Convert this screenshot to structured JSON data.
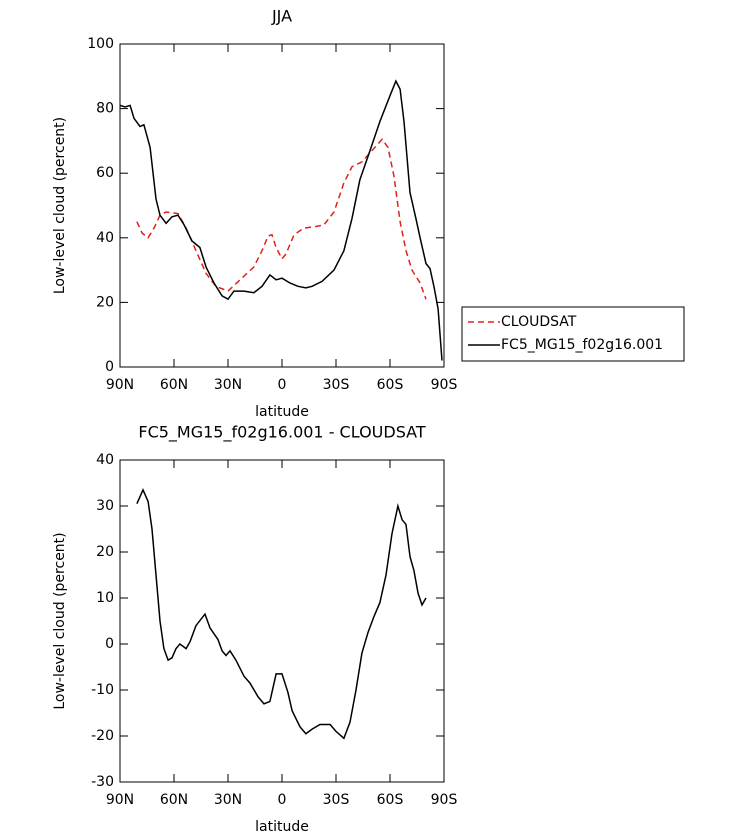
{
  "chart_data": [
    {
      "type": "line",
      "title": "JJA",
      "xlabel": "latitude",
      "ylabel": "Low-level cloud (percent)",
      "xlim": [
        90,
        -90
      ],
      "xticks": [
        {
          "value": 90,
          "label": "90N"
        },
        {
          "value": 60,
          "label": "60N"
        },
        {
          "value": 30,
          "label": "30N"
        },
        0,
        {
          "value": -30,
          "label": "30S"
        },
        {
          "value": -60,
          "label": "60S"
        },
        {
          "value": -90,
          "label": "90S"
        }
      ],
      "ylim": [
        0,
        100
      ],
      "yticks": [
        0,
        20,
        40,
        60,
        80,
        100
      ],
      "series": [
        {
          "name": "CLOUDSAT",
          "color": "#e0221b",
          "dashed": true,
          "x": [
            80.6,
            77.8,
            74.4,
            71.1,
            67.8,
            64.4,
            57.8,
            53.3,
            47.8,
            42.2,
            36.7,
            30,
            23.3,
            15.6,
            11.1,
            7.8,
            5.6,
            3.3,
            0,
            -2.2,
            -6.7,
            -12.2,
            -18.9,
            -23.3,
            -28.9,
            -34.4,
            -38.9,
            -44.4,
            -50,
            -55.6,
            -58.9,
            -62.2,
            -65.6,
            -68.9,
            -72.2,
            -76.7,
            -80
          ],
          "values": [
            45,
            41.5,
            40,
            43,
            47,
            48,
            47.5,
            43,
            36,
            29,
            25,
            23.5,
            27,
            31,
            36,
            40.5,
            41,
            37,
            33.5,
            35,
            41,
            43,
            43.5,
            44,
            48,
            57,
            62,
            63.5,
            67,
            70.5,
            68,
            59,
            45,
            36,
            30,
            26,
            21
          ]
        },
        {
          "name": "FC5_MG15_f02g16.001",
          "color": "#000000",
          "dashed": false,
          "x": [
            90,
            87.2,
            84.4,
            82.2,
            78.9,
            76.7,
            73.3,
            70,
            67.8,
            64.4,
            61.1,
            57.8,
            54.4,
            50,
            45.6,
            42.2,
            37.8,
            33.3,
            30,
            26.7,
            21.1,
            15.6,
            11.1,
            6.7,
            3.3,
            0,
            -4.4,
            -8.9,
            -13.3,
            -16.7,
            -22.2,
            -28.9,
            -34.4,
            -38.9,
            -43.3,
            -48.9,
            -54.4,
            -60,
            -63.3,
            -65.6,
            -67.8,
            -71.1,
            -74.4,
            -76.7,
            -80,
            -82.2,
            -84.4,
            -86.7,
            -88.9
          ],
          "values": [
            81,
            80.5,
            81,
            77,
            74.5,
            75,
            68,
            52,
            47,
            44.5,
            46.5,
            47,
            44,
            39,
            37,
            31,
            26,
            22,
            21,
            23.5,
            23.5,
            23,
            25,
            28.5,
            27,
            27.5,
            26,
            25,
            24.5,
            25,
            26.5,
            30,
            36,
            46,
            58,
            67,
            76,
            84,
            88.5,
            86,
            76,
            54,
            46,
            40,
            32,
            30.5,
            25,
            18,
            2
          ]
        }
      ]
    },
    {
      "type": "line",
      "title": "FC5_MG15_f02g16.001 - CLOUDSAT",
      "xlabel": "latitude",
      "ylabel": "Low-level cloud (percent)",
      "xlim": [
        90,
        -90
      ],
      "xticks": [
        {
          "value": 90,
          "label": "90N"
        },
        {
          "value": 60,
          "label": "60N"
        },
        {
          "value": 30,
          "label": "30N"
        },
        0,
        {
          "value": -30,
          "label": "30S"
        },
        {
          "value": -60,
          "label": "60S"
        },
        {
          "value": -90,
          "label": "90S"
        }
      ],
      "ylim": [
        -30,
        40
      ],
      "yticks": [
        -30,
        -20,
        -10,
        0,
        10,
        20,
        30,
        40
      ],
      "series": [
        {
          "color": "#000000",
          "dashed": false,
          "x": [
            80.6,
            77.2,
            74.4,
            72.2,
            70,
            67.8,
            65.6,
            63.3,
            61.1,
            58.9,
            56.7,
            53.3,
            51.1,
            47.8,
            42.8,
            40,
            35.6,
            33.3,
            31.1,
            28.9,
            25.6,
            21.1,
            17.8,
            13.3,
            10,
            6.7,
            3.3,
            0,
            -3.3,
            -5.6,
            -10,
            -13.3,
            -16.7,
            -21.1,
            -26.7,
            -30,
            -34.4,
            -37.8,
            -41.1,
            -44.4,
            -47.8,
            -51.1,
            -54.4,
            -57.8,
            -61.1,
            -64.4,
            -66.7,
            -68.9,
            -71.1,
            -73.3,
            -75.6,
            -77.8,
            -80
          ],
          "values": [
            30.5,
            33.5,
            31,
            25,
            15,
            5,
            -1,
            -3.5,
            -3,
            -1,
            0,
            -1,
            0.5,
            4,
            6.5,
            3.5,
            1,
            -1.5,
            -2.5,
            -1.5,
            -3.5,
            -7,
            -8.5,
            -11.5,
            -13,
            -12.5,
            -6.5,
            -6.5,
            -10.5,
            -14.5,
            -18,
            -19.5,
            -18.5,
            -17.5,
            -17.5,
            -19,
            -20.5,
            -17,
            -10,
            -2,
            2.5,
            6,
            9,
            15,
            24,
            30,
            27,
            26,
            19,
            16,
            11,
            8.5,
            10
          ]
        }
      ]
    }
  ]
}
